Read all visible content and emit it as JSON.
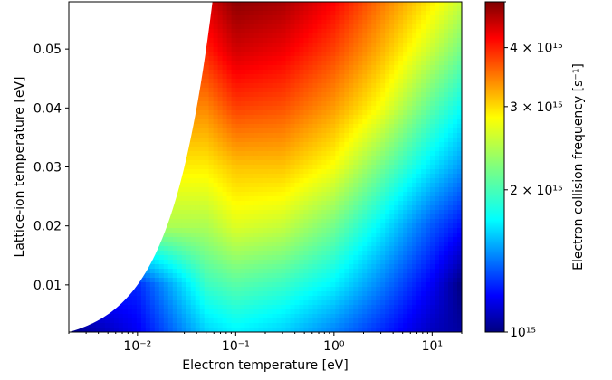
{
  "chart_data": {
    "type": "heatmap",
    "title": "",
    "xlabel": "Electron temperature [eV]",
    "ylabel": "Lattice-ion temperature [eV]",
    "colorbar_label": "Electron collision frequency [s⁻¹]",
    "x_scale": "log",
    "xlim": [
      0.002,
      20
    ],
    "ylim": [
      0.002,
      0.058
    ],
    "x_ticks": [
      0.01,
      0.1,
      1,
      10
    ],
    "x_tick_labels": [
      "10⁻²",
      "10⁻¹",
      "10⁰",
      "10¹"
    ],
    "y_ticks": [
      0.01,
      0.02,
      0.03,
      0.04,
      0.05
    ],
    "y_tick_labels": [
      "0.01",
      "0.02",
      "0.03",
      "0.04",
      "0.05"
    ],
    "colorbar": {
      "scale": "log",
      "range": [
        1000000000000000.0,
        5000000000000000.0
      ],
      "ticks": [
        1000000000000000.0,
        2000000000000000.0,
        3000000000000000.0,
        4000000000000000.0
      ],
      "tick_labels": [
        "10¹⁵",
        "2 × 10¹⁵",
        "3 × 10¹⁵",
        "4 × 10¹⁵"
      ],
      "colormap": "jet"
    },
    "mask": "blank region where electron temperature < lattice-ion temperature (upper-left)",
    "field_samples": {
      "x": [
        0.002,
        0.01,
        0.05,
        0.1,
        0.3,
        1,
        3,
        10,
        20
      ],
      "y": [
        0.002,
        0.01,
        0.02,
        0.03,
        0.04,
        0.05,
        0.058
      ],
      "z_units": "s^-1",
      "z": [
        [
          1000000000000000.0,
          1200000000000000.0,
          1700000000000000.0,
          1800000000000000.0,
          1700000000000000.0,
          1500000000000000.0,
          1300000000000000.0,
          1100000000000000.0,
          1050000000000000.0
        ],
        [
          null,
          1300000000000000.0,
          2000000000000000.0,
          2100000000000000.0,
          2000000000000000.0,
          1800000000000000.0,
          1500000000000000.0,
          1200000000000000.0,
          1000000000000000.0
        ],
        [
          null,
          null,
          2400000000000000.0,
          2600000000000000.0,
          2500000000000000.0,
          2200000000000000.0,
          1800000000000000.0,
          1400000000000000.0,
          1250000000000000.0
        ],
        [
          null,
          null,
          2800000000000000.0,
          3000000000000000.0,
          3000000000000000.0,
          2700000000000000.0,
          2200000000000000.0,
          1750000000000000.0,
          1550000000000000.0
        ],
        [
          null,
          null,
          3300000000000000.0,
          3700000000000000.0,
          3600000000000000.0,
          3200000000000000.0,
          2700000000000000.0,
          2100000000000000.0,
          1850000000000000.0
        ],
        [
          null,
          null,
          3900000000000000.0,
          4400000000000000.0,
          4200000000000000.0,
          3700000000000000.0,
          3100000000000000.0,
          2500000000000000.0,
          2200000000000000.0
        ],
        [
          null,
          null,
          4300000000000000.0,
          4900000000000000.0,
          4700000000000000.0,
          4100000000000000.0,
          3400000000000000.0,
          2800000000000000.0,
          2500000000000000.0
        ]
      ]
    }
  }
}
